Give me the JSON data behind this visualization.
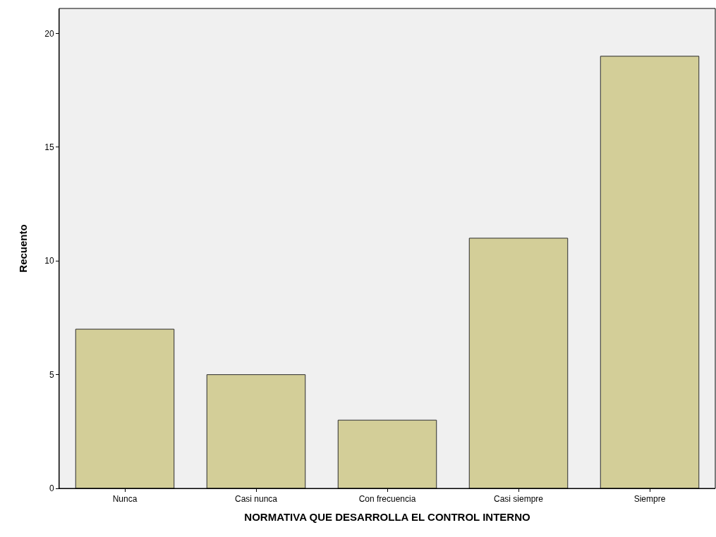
{
  "chart_data": {
    "type": "bar",
    "xlabel": "NORMATIVA QUE DESARROLLA EL CONTROL INTERNO",
    "ylabel": "Recuento",
    "categories": [
      "Nunca",
      "Casi nunca",
      "Con frecuencia",
      "Casi siempre",
      "Siempre"
    ],
    "values": [
      7,
      5,
      3,
      11,
      19
    ],
    "color": "#d3ce98",
    "ylim": [
      0,
      21.1
    ],
    "yticks": [
      0,
      5,
      10,
      15,
      20
    ],
    "grid": false,
    "legend": false
  }
}
